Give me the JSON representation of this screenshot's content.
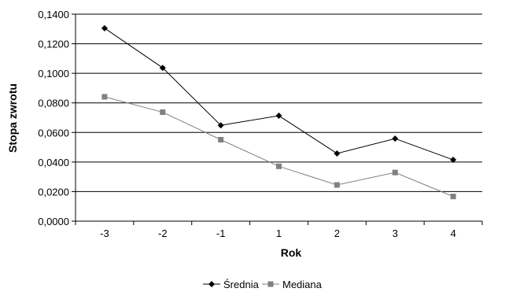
{
  "chart_data": {
    "type": "line",
    "title": "",
    "xlabel": "Rok",
    "ylabel": "Stopa zwrotu",
    "categories": [
      "-3",
      "-2",
      "-1",
      "1",
      "2",
      "3",
      "4"
    ],
    "ylim": [
      0,
      0.14
    ],
    "yticks": [
      "0,0000",
      "0,0200",
      "0,0400",
      "0,0600",
      "0,0800",
      "0,1000",
      "0,1200",
      "0,1400"
    ],
    "grid": "horizontal",
    "legend": "bottom",
    "series": [
      {
        "name": "Średnia",
        "values": [
          0.1305,
          0.1037,
          0.0648,
          0.0713,
          0.0458,
          0.0558,
          0.0415
        ],
        "color": "#000000",
        "marker": "diamond"
      },
      {
        "name": "Mediana",
        "values": [
          0.0841,
          0.0737,
          0.0551,
          0.0371,
          0.0245,
          0.0329,
          0.0167
        ],
        "color": "#808080",
        "marker": "square"
      }
    ]
  }
}
